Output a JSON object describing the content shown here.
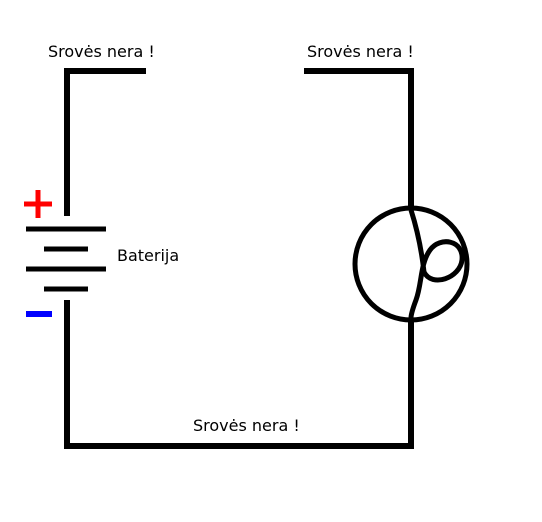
{
  "labels": {
    "top_left": "Srovės nera !",
    "top_right": "Srovės nera !",
    "bottom": "Srovės nera !",
    "battery": "Baterija"
  },
  "symbols": {
    "plus": "+",
    "minus": "−"
  },
  "colors": {
    "wire": "#000000",
    "plus": "#ff0000",
    "minus": "#0000ff",
    "background": "#ffffff"
  }
}
